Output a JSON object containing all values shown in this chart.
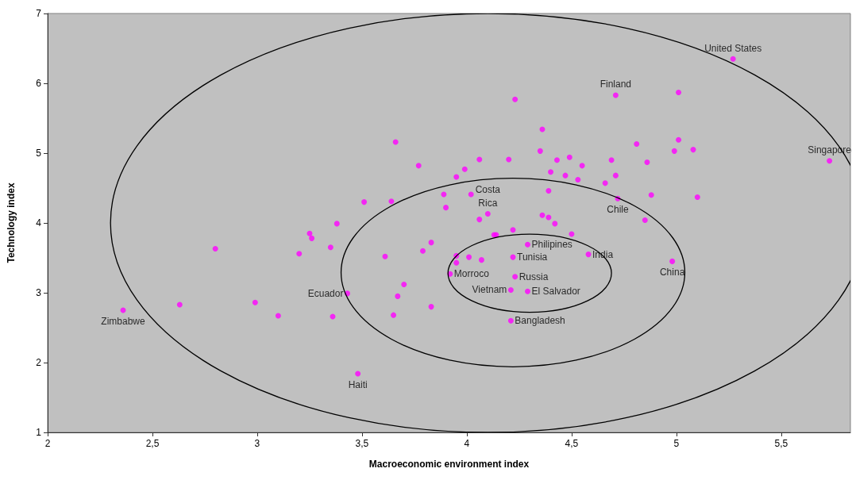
{
  "chart_data": {
    "type": "scatter",
    "xlabel": "Macroeconomic environment index",
    "ylabel": "Technology index",
    "x": [
      2.36,
      2.63,
      2.8,
      2.99,
      3.1,
      3.2,
      3.25,
      3.26,
      3.35,
      3.36,
      3.38,
      3.43,
      3.51,
      3.48,
      3.66,
      3.77,
      3.64,
      3.61,
      3.7,
      3.67,
      3.65,
      3.83,
      3.79,
      3.83,
      3.89,
      3.9,
      3.95,
      3.99,
      4.06,
      4.2,
      4.23,
      4.02,
      4.06,
      4.1,
      3.95,
      3.95,
      3.92,
      4.01,
      4.07,
      4.13,
      4.14,
      4.22,
      4.29,
      4.22,
      4.23,
      4.21,
      4.29,
      4.21,
      4.58,
      4.36,
      4.35,
      4.4,
      4.39,
      4.36,
      4.39,
      4.42,
      4.43,
      4.47,
      4.49,
      4.53,
      4.55,
      4.5,
      4.66,
      4.69,
      4.71,
      4.71,
      4.72,
      4.81,
      4.86,
      4.88,
      4.85,
      5.01,
      5.01,
      4.99,
      5.08,
      5.1,
      4.98,
      5.27,
      5.73
    ],
    "values": [
      2.75,
      2.83,
      3.63,
      2.86,
      2.67,
      3.56,
      3.85,
      3.78,
      3.65,
      2.66,
      3.99,
      2.99,
      4.3,
      1.84,
      5.16,
      4.82,
      4.31,
      3.52,
      3.12,
      2.95,
      2.68,
      2.8,
      3.6,
      3.72,
      4.41,
      4.22,
      4.66,
      4.77,
      4.91,
      4.91,
      5.77,
      4.41,
      4.05,
      4.13,
      3.53,
      3.43,
      3.27,
      3.51,
      3.47,
      3.83,
      3.83,
      3.9,
      3.69,
      3.51,
      3.23,
      3.04,
      3.02,
      2.6,
      3.55,
      5.34,
      5.03,
      4.73,
      4.46,
      4.11,
      4.08,
      3.99,
      4.9,
      4.68,
      4.94,
      4.62,
      4.82,
      3.84,
      4.57,
      4.9,
      4.68,
      5.83,
      4.35,
      5.13,
      4.87,
      4.4,
      4.04,
      5.87,
      5.19,
      5.03,
      5.05,
      4.37,
      3.45,
      6.35,
      4.89
    ],
    "color": "#ff00ff",
    "marker": "circle",
    "xlim": [
      2,
      5.83
    ],
    "ylim": [
      1,
      7
    ],
    "xticks": [
      2,
      {
        "value": 2.5,
        "label": "2,5"
      },
      3,
      {
        "value": 3.5,
        "label": "3,5"
      },
      4,
      {
        "value": 4.5,
        "label": "4,5"
      },
      5,
      {
        "value": 5.5,
        "label": "5,5"
      }
    ],
    "yticks": [
      1,
      2,
      3,
      4,
      5,
      6,
      7
    ],
    "grid": false,
    "annotations": [
      {
        "text": "Zimbabwe",
        "x": 2.36,
        "y": 2.75
      },
      {
        "text": "Haiti",
        "x": 3.48,
        "y": 1.84
      },
      {
        "text": "Ecuador",
        "x": 3.43,
        "y": 2.99
      },
      {
        "text": "Costa\nRica",
        "x": 4.1,
        "y": 4.13
      },
      {
        "text": "Morroco",
        "x": 3.92,
        "y": 3.27
      },
      {
        "text": "Vietnam",
        "x": 4.21,
        "y": 3.04
      },
      {
        "text": "Tunisia",
        "x": 4.22,
        "y": 3.51
      },
      {
        "text": "Philipines",
        "x": 4.29,
        "y": 3.69
      },
      {
        "text": "Russia",
        "x": 4.23,
        "y": 3.23
      },
      {
        "text": "El Salvador",
        "x": 4.29,
        "y": 3.02
      },
      {
        "text": "Bangladesh",
        "x": 4.21,
        "y": 2.6
      },
      {
        "text": "India",
        "x": 4.58,
        "y": 3.55
      },
      {
        "text": "China",
        "x": 4.98,
        "y": 3.45
      },
      {
        "text": "Chile",
        "x": 4.72,
        "y": 4.35
      },
      {
        "text": "Finland",
        "x": 4.71,
        "y": 5.83
      },
      {
        "text": "United States",
        "x": 5.27,
        "y": 6.35
      },
      {
        "text": "Singapore",
        "x": 5.73,
        "y": 4.89
      }
    ]
  }
}
